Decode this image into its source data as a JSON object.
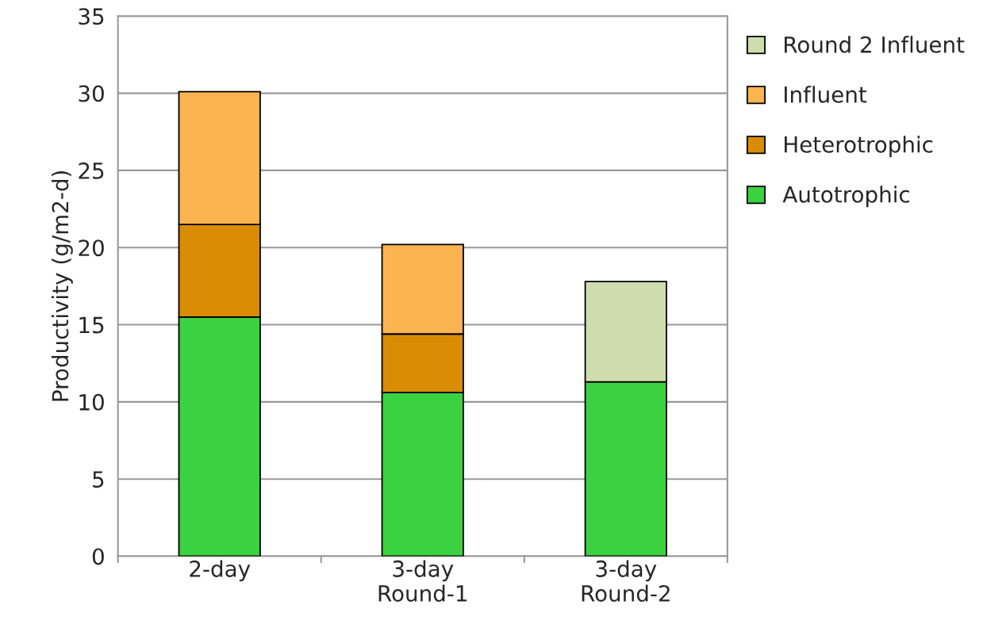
{
  "chart_data": {
    "type": "bar",
    "stacked": true,
    "ylabel": "Productivity (g/m2-d)",
    "categories": [
      "2-day",
      "3-day\nRound-1",
      "3-day\nRound-2"
    ],
    "series": [
      {
        "name": "Autotrophic",
        "color": "#3bd242",
        "values": [
          15.5,
          10.6,
          11.3
        ]
      },
      {
        "name": "Heterotrophic",
        "color": "#d98c03",
        "values": [
          6.0,
          3.8,
          null
        ]
      },
      {
        "name": "Influent",
        "color": "#fbb450",
        "values": [
          8.6,
          5.8,
          null
        ]
      },
      {
        "name": "Round 2 Influent",
        "color": "#cfddae",
        "values": [
          null,
          null,
          6.5
        ]
      }
    ],
    "ylim": [
      0,
      35
    ],
    "yticks": [
      0,
      5,
      10,
      15,
      20,
      25,
      30,
      35
    ],
    "grid": "y",
    "legend": "right"
  }
}
